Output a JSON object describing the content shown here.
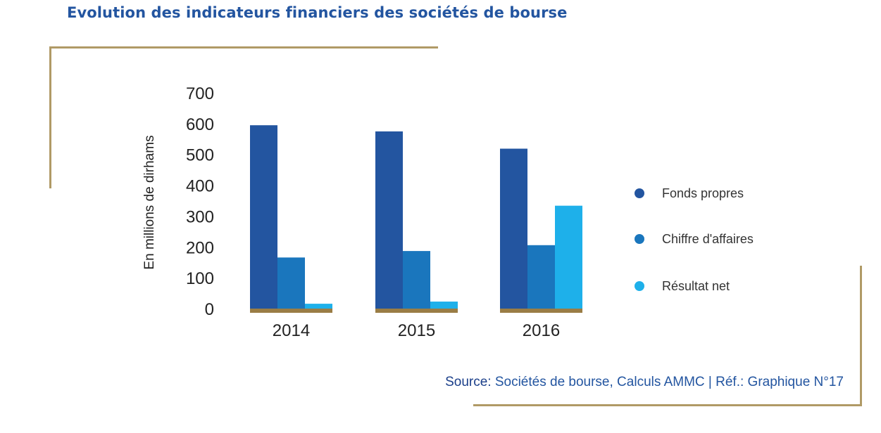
{
  "title": "Evolution des indicateurs financiers des sociétés de bourse",
  "colors": {
    "title": "#2355a0",
    "frame": "#b09a66",
    "baseline": "#9a7d45",
    "series": [
      "#2355a0",
      "#1a76bd",
      "#1eb0ea"
    ]
  },
  "source": {
    "label": "Source:",
    "text": "Sociétés de bourse, Calculs AMMC | Réf.: Graphique N°17"
  },
  "chart_data": {
    "type": "bar",
    "title": "",
    "xlabel": "",
    "ylabel": "En millions de dirhams",
    "ylim": [
      0,
      700
    ],
    "yticks": [
      "700",
      "600",
      "500",
      "400",
      "300",
      "200",
      "100",
      "0"
    ],
    "categories": [
      "2014",
      "2015",
      "2016"
    ],
    "series": [
      {
        "name": "Fonds propres",
        "values": [
          597,
          577,
          521
        ]
      },
      {
        "name": "Chiffre d'affaires",
        "values": [
          168,
          189,
          208
        ]
      },
      {
        "name": "Résultat net",
        "values": [
          18,
          25,
          336
        ]
      }
    ],
    "grid": false,
    "legend": "right"
  }
}
